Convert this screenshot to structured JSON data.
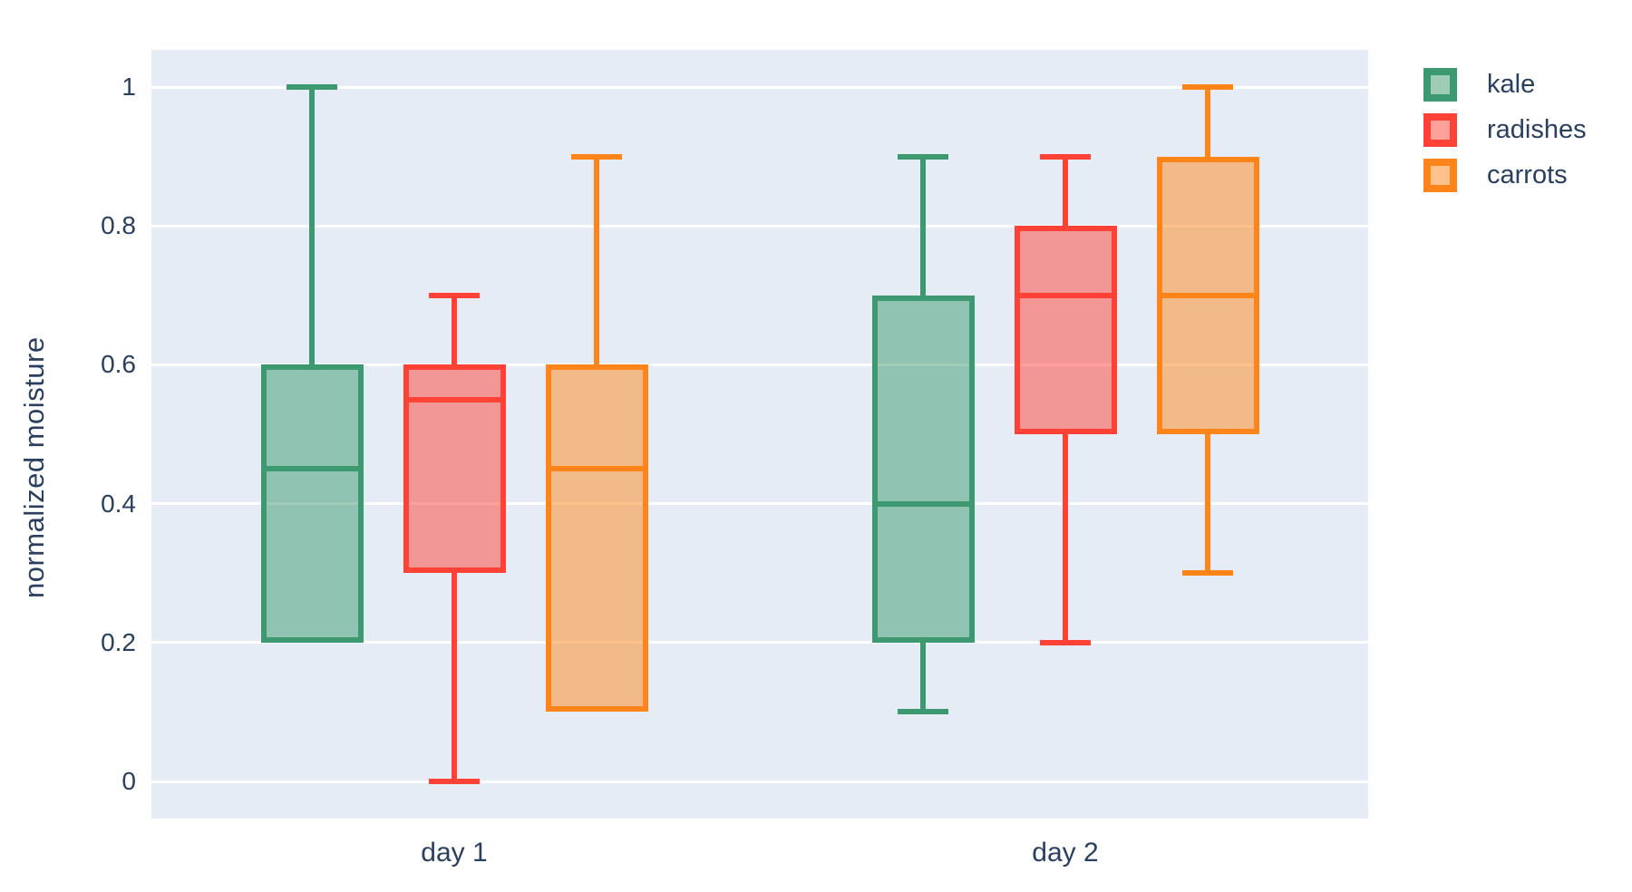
{
  "chart_data": {
    "type": "box",
    "title": "",
    "xlabel": "",
    "ylabel": "normalized moisture",
    "categories": [
      "day 1",
      "day 2"
    ],
    "yticks": [
      {
        "label": "0",
        "value": 0
      },
      {
        "label": "0.2",
        "value": 0.2
      },
      {
        "label": "0.4",
        "value": 0.4
      },
      {
        "label": "0.6",
        "value": 0.6
      },
      {
        "label": "0.8",
        "value": 0.8
      },
      {
        "label": "1",
        "value": 1
      }
    ],
    "ylim": [
      -0.054,
      1.053
    ],
    "grid": true,
    "boxmode": "group",
    "legend_position": "top-right",
    "plot_bgcolor": "#E5ECF6",
    "grid_color": "#FFFFFF",
    "text_color": "#2A3F5F",
    "fill_opacity": 0.5,
    "series": [
      {
        "name": "kale",
        "color": "#3D9970",
        "boxes": [
          {
            "category": "day 1",
            "min": 0.2,
            "q1": 0.2,
            "median": 0.45,
            "q3": 0.6,
            "max": 1.0
          },
          {
            "category": "day 2",
            "min": 0.1,
            "q1": 0.2,
            "median": 0.4,
            "q3": 0.7,
            "max": 0.9
          }
        ]
      },
      {
        "name": "radishes",
        "color": "#FF4136",
        "boxes": [
          {
            "category": "day 1",
            "min": 0.0,
            "q1": 0.3,
            "median": 0.55,
            "q3": 0.6,
            "max": 0.7
          },
          {
            "category": "day 2",
            "min": 0.2,
            "q1": 0.5,
            "median": 0.7,
            "q3": 0.8,
            "max": 0.9
          }
        ]
      },
      {
        "name": "carrots",
        "color": "#FF851B",
        "boxes": [
          {
            "category": "day 1",
            "min": 0.1,
            "q1": 0.1,
            "median": 0.45,
            "q3": 0.6,
            "max": 0.9
          },
          {
            "category": "day 2",
            "min": 0.3,
            "q1": 0.5,
            "median": 0.7,
            "q3": 0.9,
            "max": 1.0
          }
        ]
      }
    ]
  }
}
